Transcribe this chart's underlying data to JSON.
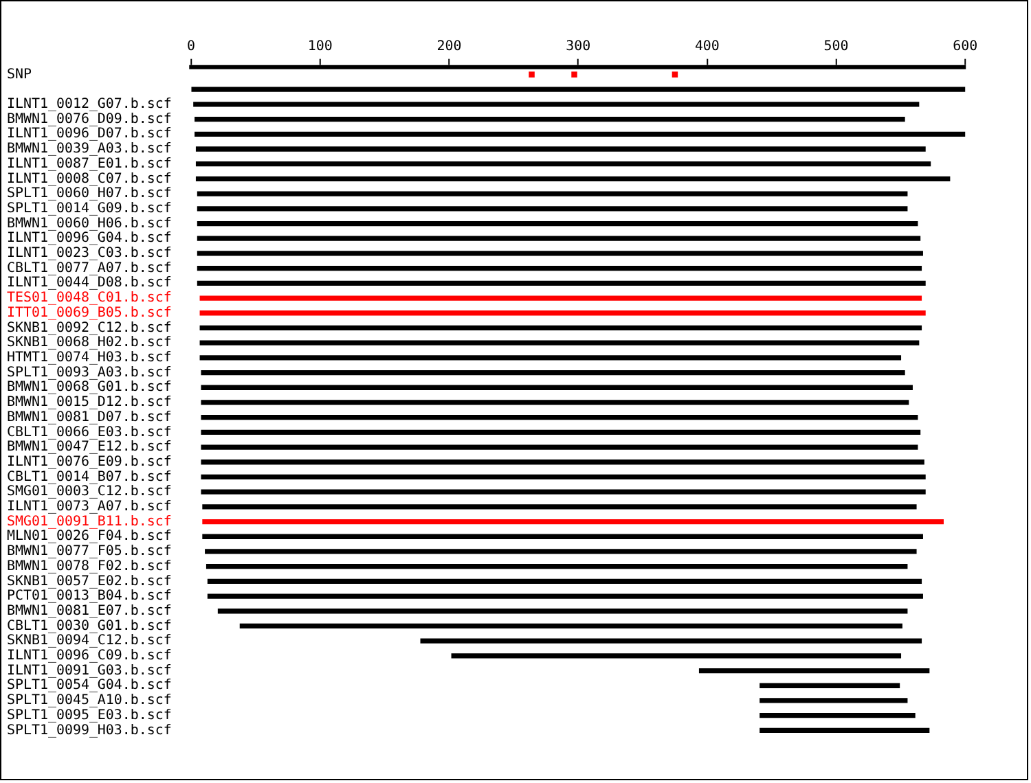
{
  "chart_data": {
    "type": "bar",
    "orientation": "horizontal",
    "xlim": [
      0,
      600
    ],
    "xticks": [
      0,
      100,
      200,
      300,
      400,
      500,
      600
    ],
    "grid": false,
    "legend": false,
    "categories": [
      "SNP",
      null,
      "ILNT1_0012_G07.b.scf",
      "BMWN1_0076_D09.b.scf",
      "ILNT1_0096_D07.b.scf",
      "BMWN1_0039_A03.b.scf",
      "ILNT1_0087_E01.b.scf",
      "ILNT1_0008_C07.b.scf",
      "SPLT1_0060_H07.b.scf",
      "SPLT1_0014_G09.b.scf",
      "BMWN1_0060_H06.b.scf",
      "ILNT1_0096_G04.b.scf",
      "ILNT1_0023_C03.b.scf",
      "CBLT1_0077_A07.b.scf",
      "ILNT1_0044_D08.b.scf",
      "TES01_0048_C01.b.scf",
      "ITT01_0069_B05.b.scf",
      "SKNB1_0092_C12.b.scf",
      "SKNB1_0068_H02.b.scf",
      "HTMT1_0074_H03.b.scf",
      "SPLT1_0093_A03.b.scf",
      "BMWN1_0068_G01.b.scf",
      "BMWN1_0015_D12.b.scf",
      "BMWN1_0081_D07.b.scf",
      "CBLT1_0066_E03.b.scf",
      "BMWN1_0047_E12.b.scf",
      "ILNT1_0076_E09.b.scf",
      "CBLT1_0014_B07.b.scf",
      "SMG01_0003_C12.b.scf",
      "ILNT1_0073_A07.b.scf",
      "SMG01_0091_B11.b.scf",
      "MLN01_0026_F04.b.scf",
      "BMWN1_0077_F05.b.scf",
      "BMWN1_0078_F02.b.scf",
      "SKNB1_0057_E02.b.scf",
      "PCT01_0013_B04.b.scf",
      "BMWN1_0081_E07.b.scf",
      "CBLT1_0030_G01.b.scf",
      "SKNB1_0094_C12.b.scf",
      "ILNT1_0096_C09.b.scf",
      "ILNT1_0091_G03.b.scf",
      "SPLT1_0054_G04.b.scf",
      "SPLT1_0045_A10.b.scf",
      "SPLT1_0095_E03.b.scf",
      "SPLT1_0099_H03.b.scf"
    ],
    "series": [
      {
        "base": [
          null,
          0,
          2,
          3,
          3,
          4,
          4,
          4,
          5,
          5,
          5,
          5,
          5,
          5,
          5,
          7,
          7,
          7,
          7,
          7,
          8,
          8,
          8,
          8,
          8,
          8,
          8,
          8,
          8,
          9,
          9,
          9,
          11,
          12,
          13,
          13,
          21,
          38,
          178,
          202,
          394,
          441,
          441,
          441,
          441
        ],
        "values": [
          null,
          600,
          562,
          550,
          597,
          565,
          569,
          584,
          550,
          550,
          558,
          560,
          562,
          561,
          564,
          559,
          562,
          559,
          557,
          543,
          545,
          551,
          548,
          555,
          557,
          555,
          560,
          561,
          561,
          553,
          574,
          558,
          551,
          543,
          553,
          554,
          534,
          513,
          388,
          348,
          178,
          108,
          114,
          120,
          131
        ],
        "colors": [
          "#000000",
          "#000000",
          "#000000",
          "#000000",
          "#000000",
          "#000000",
          "#000000",
          "#000000",
          "#000000",
          "#000000",
          "#000000",
          "#000000",
          "#000000",
          "#000000",
          "#000000",
          "#ff0000",
          "#ff0000",
          "#000000",
          "#000000",
          "#000000",
          "#000000",
          "#000000",
          "#000000",
          "#000000",
          "#000000",
          "#000000",
          "#000000",
          "#000000",
          "#000000",
          "#000000",
          "#ff0000",
          "#000000",
          "#000000",
          "#000000",
          "#000000",
          "#000000",
          "#000000",
          "#000000",
          "#000000",
          "#000000",
          "#000000",
          "#000000",
          "#000000",
          "#000000",
          "#000000"
        ]
      },
      {
        "type": "scatter",
        "x": [
          "SNP",
          "SNP",
          "SNP"
        ],
        "values": [
          264,
          297,
          375
        ],
        "color": "#ff0000",
        "marker": "square"
      }
    ]
  }
}
